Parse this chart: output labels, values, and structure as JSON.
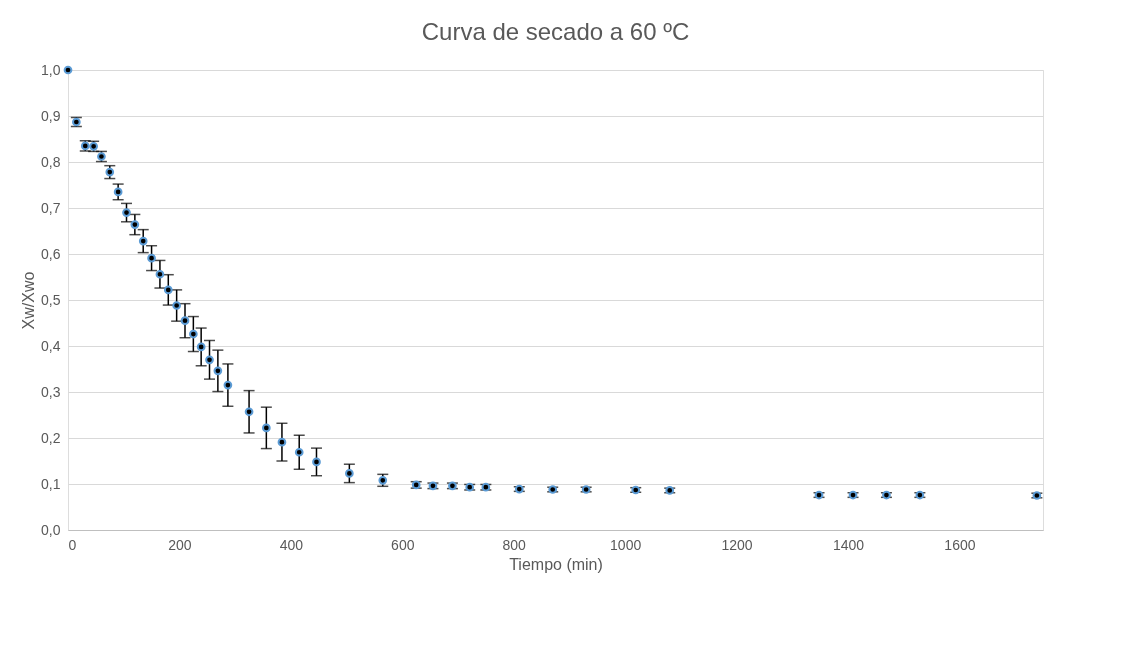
{
  "chart_data": {
    "type": "scatter",
    "title": "Curva de secado a 60 ºC",
    "xlabel": "Tiempo (min)",
    "ylabel": "Xw/Xwo",
    "x": [
      0,
      15,
      31,
      46,
      60,
      75,
      90,
      105,
      120,
      135,
      150,
      165,
      180,
      195,
      210,
      225,
      239,
      254,
      269,
      287,
      325,
      356,
      384,
      415,
      446,
      505,
      565,
      625,
      655,
      690,
      721,
      750,
      810,
      870,
      930,
      1019,
      1080,
      1348,
      1409,
      1469,
      1529,
      1739
    ],
    "series": [
      {
        "color": "#000000",
        "values": [
          1.0,
          0.887,
          0.835,
          0.834,
          0.812,
          0.778,
          0.735,
          0.69,
          0.664,
          0.628,
          0.591,
          0.556,
          0.522,
          0.488,
          0.455,
          0.426,
          0.398,
          0.37,
          0.346,
          0.315,
          0.257,
          0.222,
          0.191,
          0.169,
          0.148,
          0.123,
          0.108,
          0.098,
          0.096,
          0.096,
          0.093,
          0.093,
          0.089,
          0.088,
          0.088,
          0.087,
          0.086,
          0.076,
          0.076,
          0.076,
          0.076,
          0.075
        ],
        "errors": [
          null,
          0.01,
          0.011,
          0.011,
          0.011,
          0.014,
          0.017,
          0.02,
          0.022,
          0.025,
          0.027,
          0.03,
          0.033,
          0.034,
          0.037,
          0.038,
          0.041,
          0.042,
          0.045,
          0.046,
          0.046,
          0.045,
          0.041,
          0.037,
          0.03,
          0.02,
          0.013,
          0.007,
          0.006,
          0.006,
          0.006,
          0.006,
          0.005,
          0.005,
          0.005,
          0.005,
          0.005,
          0.005,
          0.005,
          0.005,
          0.005,
          0.005
        ]
      }
    ],
    "xlim": [
      0,
      1750
    ],
    "xticks": [
      0,
      200,
      400,
      600,
      800,
      1000,
      1200,
      1400,
      1600
    ],
    "ylim": [
      0,
      1
    ],
    "yticks": [
      {
        "value": 0,
        "label": "0,0"
      },
      {
        "value": 0.1,
        "label": "0,1"
      },
      {
        "value": 0.2,
        "label": "0,2"
      },
      {
        "value": 0.3,
        "label": "0,3"
      },
      {
        "value": 0.4,
        "label": "0,4"
      },
      {
        "value": 0.5,
        "label": "0,5"
      },
      {
        "value": 0.6,
        "label": "0,6"
      },
      {
        "value": 0.7,
        "label": "0,7"
      },
      {
        "value": 0.8,
        "label": "0,8"
      },
      {
        "value": 0.9,
        "label": "0,9"
      },
      {
        "value": 1.0,
        "label": "1,0"
      }
    ],
    "grid": "y",
    "marker": "circle"
  }
}
